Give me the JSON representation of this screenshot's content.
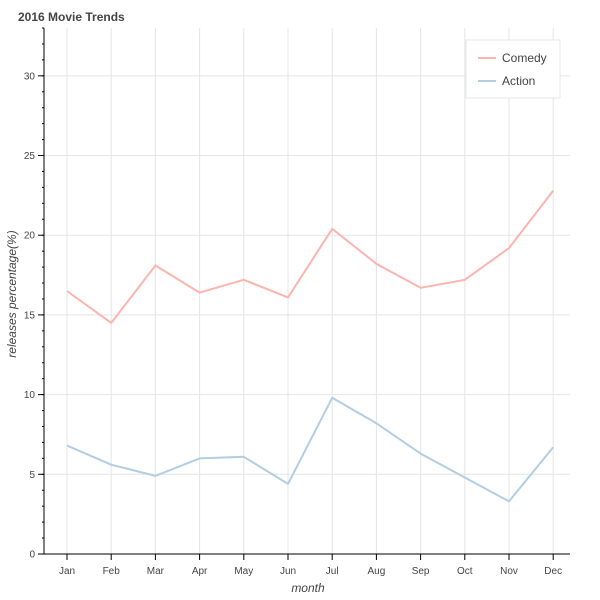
{
  "chart_data": {
    "type": "line",
    "title": "2016 Movie Trends",
    "xlabel": "month",
    "ylabel": "releases percentage(%)",
    "categories": [
      "Jan",
      "Feb",
      "Mar",
      "Apr",
      "May",
      "Jun",
      "Jul",
      "Aug",
      "Sep",
      "Oct",
      "Nov",
      "Dec"
    ],
    "ylim": [
      0,
      33
    ],
    "yticks": [
      0,
      5,
      10,
      15,
      20,
      25,
      30
    ],
    "grid": true,
    "legend_position": "top-right",
    "series": [
      {
        "name": "Comedy",
        "color": "#fbb4ae",
        "values": [
          16.5,
          14.5,
          18.1,
          16.4,
          17.2,
          16.1,
          20.4,
          18.2,
          16.7,
          17.2,
          19.2,
          22.8
        ]
      },
      {
        "name": "Action",
        "color": "#b3cde3",
        "values": [
          6.8,
          5.6,
          4.9,
          6.0,
          6.1,
          4.4,
          9.8,
          8.2,
          6.3,
          4.8,
          3.3,
          6.7
        ]
      }
    ]
  }
}
